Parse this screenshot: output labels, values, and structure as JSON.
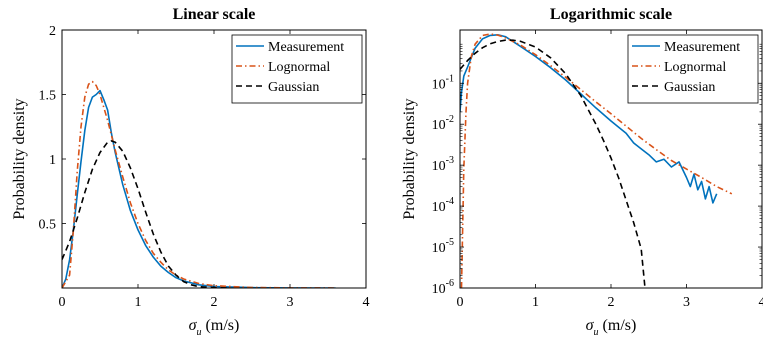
{
  "chart_data": [
    {
      "type": "line",
      "title": "Linear scale",
      "xlabel_symbol": "σ",
      "xlabel_subscript": "u",
      "xlabel_unit": " (m/s)",
      "ylabel": "Probability density",
      "xlim": [
        0,
        4
      ],
      "ylim": [
        0,
        2
      ],
      "yscale": "linear",
      "xticks": [
        0,
        1,
        2,
        3,
        4
      ],
      "xtick_labels": [
        "0",
        "1",
        "2",
        "3",
        "4"
      ],
      "yticks": [
        0.5,
        1,
        1.5,
        2
      ],
      "ytick_labels": [
        "0.5",
        "1",
        "1.5",
        "2"
      ],
      "legend_position": "top-right",
      "series": [
        {
          "name": "Measurement",
          "color": "#0072BD",
          "dash": "solid",
          "x": [
            0.0,
            0.05,
            0.1,
            0.15,
            0.2,
            0.25,
            0.3,
            0.35,
            0.4,
            0.45,
            0.5,
            0.55,
            0.6,
            0.65,
            0.7,
            0.8,
            0.9,
            1.0,
            1.1,
            1.2,
            1.3,
            1.4,
            1.5,
            1.6,
            1.8,
            2.0,
            2.5,
            3.0,
            3.6
          ],
          "y": [
            0.0,
            0.07,
            0.22,
            0.45,
            0.72,
            0.98,
            1.22,
            1.4,
            1.48,
            1.5,
            1.53,
            1.46,
            1.38,
            1.2,
            1.05,
            0.8,
            0.6,
            0.45,
            0.33,
            0.24,
            0.17,
            0.12,
            0.08,
            0.055,
            0.025,
            0.012,
            0.003,
            0.001,
            0.0
          ]
        },
        {
          "name": "Lognormal",
          "color": "#D95319",
          "dash": "dashdot",
          "x": [
            0.0,
            0.1,
            0.15,
            0.2,
            0.25,
            0.3,
            0.35,
            0.4,
            0.45,
            0.5,
            0.55,
            0.6,
            0.7,
            0.8,
            0.9,
            1.0,
            1.1,
            1.2,
            1.3,
            1.4,
            1.5,
            1.6,
            1.8,
            2.0,
            2.5,
            3.0,
            3.6
          ],
          "y": [
            0.0,
            0.1,
            0.45,
            0.9,
            1.25,
            1.48,
            1.58,
            1.6,
            1.57,
            1.5,
            1.4,
            1.3,
            1.07,
            0.86,
            0.66,
            0.5,
            0.37,
            0.27,
            0.2,
            0.14,
            0.1,
            0.07,
            0.035,
            0.018,
            0.004,
            0.001,
            0.0
          ]
        },
        {
          "name": "Gaussian",
          "color": "#000000",
          "dash": "dashed",
          "x": [
            0.0,
            0.1,
            0.2,
            0.3,
            0.4,
            0.5,
            0.6,
            0.65,
            0.7,
            0.8,
            0.9,
            1.0,
            1.1,
            1.2,
            1.3,
            1.4,
            1.5,
            1.6,
            1.7,
            1.8,
            2.0,
            2.2
          ],
          "y": [
            0.22,
            0.36,
            0.54,
            0.74,
            0.92,
            1.05,
            1.13,
            1.14,
            1.13,
            1.06,
            0.93,
            0.77,
            0.59,
            0.42,
            0.28,
            0.17,
            0.1,
            0.05,
            0.025,
            0.01,
            0.002,
            0.0
          ]
        }
      ]
    },
    {
      "type": "line",
      "title": "Logarithmic scale",
      "xlabel_symbol": "σ",
      "xlabel_subscript": "u",
      "xlabel_unit": " (m/s)",
      "ylabel": "Probability density",
      "xlim": [
        0,
        4
      ],
      "ylim": [
        1e-06,
        2
      ],
      "yscale": "log",
      "xticks": [
        0,
        1,
        2,
        3,
        4
      ],
      "xtick_labels": [
        "0",
        "1",
        "2",
        "3",
        "4"
      ],
      "yticks": [
        1e-06,
        1e-05,
        0.0001,
        0.001,
        0.01,
        0.1
      ],
      "ytick_labels": [
        {
          "base": "10",
          "exp": "-6"
        },
        {
          "base": "10",
          "exp": "-5"
        },
        {
          "base": "10",
          "exp": "-4"
        },
        {
          "base": "10",
          "exp": "-3"
        },
        {
          "base": "10",
          "exp": "-2"
        },
        {
          "base": "10",
          "exp": "-1"
        }
      ],
      "legend_position": "top-right",
      "series": [
        {
          "name": "Measurement",
          "color": "#0072BD",
          "dash": "solid",
          "x": [
            0.0,
            0.02,
            0.05,
            0.1,
            0.2,
            0.3,
            0.4,
            0.5,
            0.6,
            0.8,
            1.0,
            1.2,
            1.4,
            1.6,
            1.8,
            2.0,
            2.2,
            2.3,
            2.4,
            2.5,
            2.6,
            2.7,
            2.8,
            2.9,
            3.0,
            3.05,
            3.1,
            3.15,
            3.2,
            3.25,
            3.3,
            3.35,
            3.4
          ],
          "y": [
            0.02,
            0.06,
            0.15,
            0.25,
            0.72,
            1.22,
            1.48,
            1.53,
            1.38,
            0.8,
            0.45,
            0.24,
            0.12,
            0.055,
            0.025,
            0.012,
            0.006,
            0.0035,
            0.0025,
            0.0018,
            0.0012,
            0.0014,
            0.0009,
            0.0012,
            0.0005,
            0.0003,
            0.0006,
            0.00025,
            0.0004,
            0.00015,
            0.0003,
            0.00012,
            0.0002
          ]
        },
        {
          "name": "Lognormal",
          "color": "#D95319",
          "dash": "dashdot",
          "x": [
            0.02,
            0.05,
            0.08,
            0.1,
            0.15,
            0.2,
            0.3,
            0.4,
            0.5,
            0.6,
            0.8,
            1.0,
            1.2,
            1.4,
            1.6,
            1.8,
            2.0,
            2.2,
            2.4,
            2.6,
            2.8,
            3.0,
            3.2,
            3.4,
            3.6
          ],
          "y": [
            1e-06,
            0.0008,
            0.02,
            0.1,
            0.45,
            0.9,
            1.48,
            1.6,
            1.5,
            1.3,
            0.86,
            0.5,
            0.27,
            0.14,
            0.07,
            0.035,
            0.018,
            0.009,
            0.0045,
            0.0024,
            0.0013,
            0.0008,
            0.0005,
            0.0003,
            0.0002
          ]
        },
        {
          "name": "Gaussian",
          "color": "#000000",
          "dash": "dashed",
          "x": [
            0.0,
            0.1,
            0.2,
            0.3,
            0.4,
            0.5,
            0.6,
            0.7,
            0.8,
            1.0,
            1.2,
            1.4,
            1.6,
            1.8,
            1.9,
            2.0,
            2.1,
            2.2,
            2.3,
            2.4,
            2.45
          ],
          "y": [
            0.22,
            0.36,
            0.54,
            0.74,
            0.92,
            1.05,
            1.13,
            1.13,
            1.06,
            0.77,
            0.42,
            0.17,
            0.05,
            0.01,
            0.004,
            0.0015,
            0.0005,
            0.00014,
            4e-05,
            9e-06,
            1e-06
          ]
        }
      ]
    }
  ]
}
